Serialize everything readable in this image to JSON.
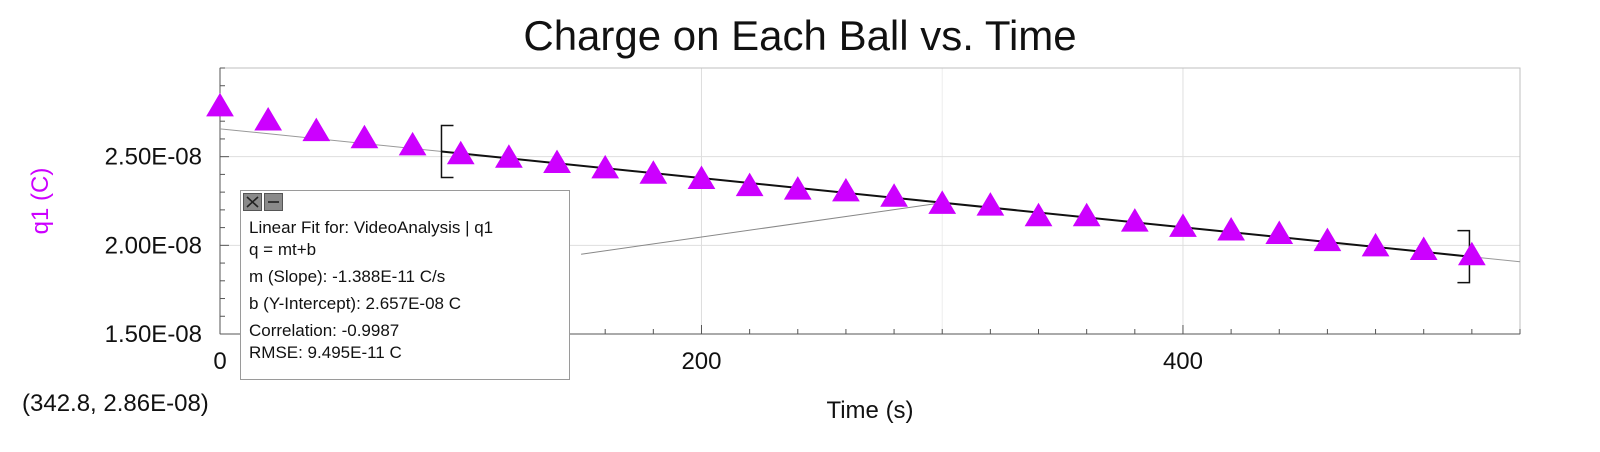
{
  "chart_data": {
    "type": "scatter",
    "title": "Charge on Each Ball vs. Time",
    "xlabel": "Time (s)",
    "ylabel": "q1 (C)",
    "xlim": [
      0,
      540
    ],
    "ylim": [
      1.5e-08,
      3e-08
    ],
    "x_ticks": [
      0,
      200,
      400
    ],
    "x_tick_labels": [
      "0",
      "200",
      "400"
    ],
    "y_ticks": [
      1.5e-08,
      2e-08,
      2.5e-08
    ],
    "y_tick_labels": [
      "1.50E-08",
      "2.00E-08",
      "2.50E-08"
    ],
    "grid": true,
    "series": [
      {
        "name": "q1",
        "color": "#cc00ff",
        "marker": "triangle",
        "x": [
          0,
          20,
          40,
          60,
          80,
          100,
          120,
          140,
          160,
          180,
          200,
          220,
          240,
          260,
          280,
          300,
          320,
          340,
          360,
          380,
          400,
          420,
          440,
          460,
          480,
          500,
          520
        ],
        "y": [
          2.78e-08,
          2.7e-08,
          2.64e-08,
          2.6e-08,
          2.56e-08,
          2.51e-08,
          2.49e-08,
          2.46e-08,
          2.43e-08,
          2.4e-08,
          2.37e-08,
          2.33e-08,
          2.31e-08,
          2.3e-08,
          2.27e-08,
          2.23e-08,
          2.22e-08,
          2.16e-08,
          2.16e-08,
          2.13e-08,
          2.1e-08,
          2.08e-08,
          2.06e-08,
          2.02e-08,
          1.99e-08,
          1.97e-08,
          1.94e-08
        ]
      }
    ],
    "fit": {
      "slope": -1.388e-11,
      "intercept": 2.657e-08,
      "range": [
        92,
        519
      ],
      "x_extent": [
        0,
        540
      ]
    },
    "annotation_leader": {
      "from": [
        150,
        1.95e-08
      ],
      "to": [
        300,
        2.24e-08
      ]
    }
  },
  "fit_box": {
    "header": "Linear Fit for: VideoAnalysis | q1",
    "equation": "q = mt+b",
    "slope": "m (Slope): -1.388E-11 C/s",
    "intercept": "b (Y-Intercept): 2.657E-08 C",
    "correlation": "Correlation: -0.9987",
    "rmse": "RMSE: 9.495E-11 C"
  },
  "coordinate_readout": "(342.8, 2.86E-08)"
}
